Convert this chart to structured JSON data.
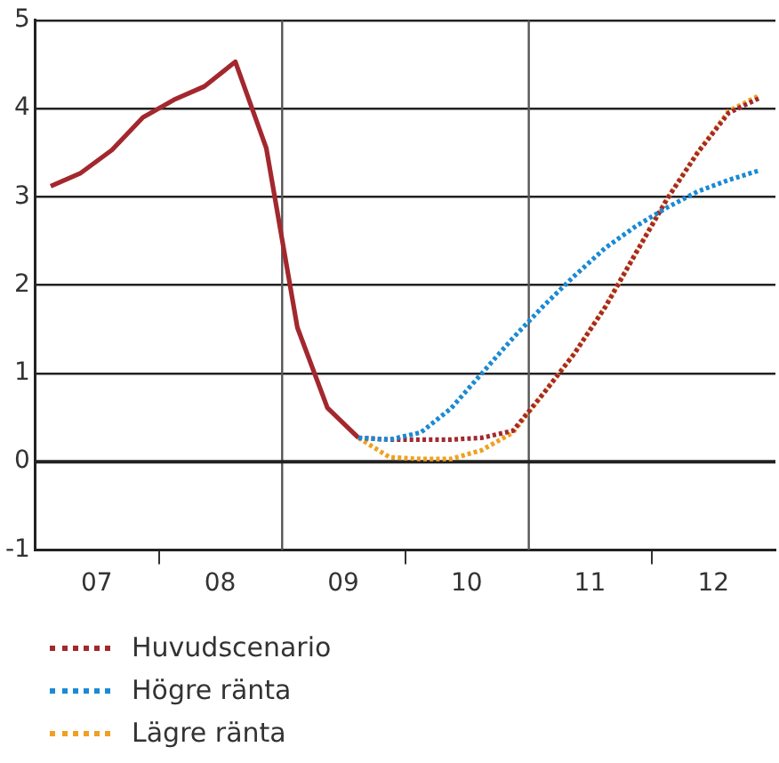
{
  "chart_data": {
    "type": "line",
    "x": [
      "2007-02-15",
      "2007-05-15",
      "2007-08-15",
      "2007-11-15",
      "2008-02-15",
      "2008-05-15",
      "2008-08-15",
      "2008-11-15",
      "2009-02-15",
      "2009-05-15",
      "2009-08-15"
    ],
    "series": [
      {
        "color": "#a3282e",
        "values": [
          3.12,
          3.27,
          3.53,
          3.9,
          4.1,
          4.25,
          4.53,
          3.55,
          1.52,
          0.61,
          0.27
        ],
        "line_style": "solid"
      },
      {
        "name": "Huvudscenario",
        "color": "#a3282e",
        "line_style": "dotted",
        "x": [
          "2009-08-15",
          "2009-11-15",
          "2010-02-15",
          "2010-05-15",
          "2010-08-15",
          "2010-11-15",
          "2011-02-15",
          "2011-05-15",
          "2011-08-15",
          "2011-11-15",
          "2012-02-15",
          "2012-05-15",
          "2012-08-15",
          "2012-11-15"
        ],
        "values": [
          0.27,
          0.25,
          0.25,
          0.25,
          0.27,
          0.35,
          0.78,
          1.22,
          1.75,
          2.37,
          2.98,
          3.5,
          3.95,
          4.12
        ]
      },
      {
        "name": "Högre ränta",
        "color": "#1a8ad4",
        "line_style": "dotted",
        "x": [
          "2009-08-15",
          "2009-11-15",
          "2010-02-15",
          "2010-05-15",
          "2010-08-15",
          "2010-11-15",
          "2011-02-15",
          "2011-05-15",
          "2011-08-15",
          "2011-11-15",
          "2012-02-15",
          "2012-05-15",
          "2012-08-15",
          "2012-11-15"
        ],
        "values": [
          0.27,
          0.25,
          0.33,
          0.6,
          1.0,
          1.4,
          1.77,
          2.1,
          2.42,
          2.67,
          2.88,
          3.06,
          3.19,
          3.3
        ]
      },
      {
        "name": "Lägre ränta",
        "color": "#f0a020",
        "line_style": "dotted",
        "x": [
          "2009-08-15",
          "2009-11-15",
          "2010-02-15",
          "2010-05-15",
          "2010-08-15",
          "2010-11-15",
          "2011-02-15",
          "2011-05-15",
          "2011-08-15",
          "2011-11-15",
          "2012-02-15",
          "2012-05-15",
          "2012-08-15",
          "2012-11-15"
        ],
        "values": [
          0.27,
          0.05,
          0.03,
          0.03,
          0.13,
          0.33,
          0.78,
          1.22,
          1.75,
          2.37,
          2.98,
          3.5,
          3.97,
          4.15
        ]
      }
    ],
    "xlim": [
      "2007-01-01",
      "2013-01-01"
    ],
    "xticks": [
      {
        "value": "2007-07-01",
        "label": "07"
      },
      {
        "value": "2008-01-01",
        "label": null
      },
      {
        "value": "2008-07-01",
        "label": "08"
      },
      {
        "value": "2009-07-01",
        "label": "09"
      },
      {
        "value": "2010-01-01",
        "label": null
      },
      {
        "value": "2010-07-01",
        "label": "10"
      },
      {
        "value": "2011-07-01",
        "label": "11"
      },
      {
        "value": "2012-01-01",
        "label": null
      },
      {
        "value": "2012-07-01",
        "label": "12"
      }
    ],
    "ylim": [
      -1,
      5
    ],
    "yticks": [
      -1,
      0,
      1,
      2,
      3,
      4,
      5
    ],
    "ref_lines": [
      {
        "axis": "x",
        "value": "2009-01-01",
        "color": "#555555"
      },
      {
        "axis": "x",
        "value": "2011-01-01",
        "color": "#555555"
      },
      {
        "axis": "y",
        "value": 0,
        "color": "#222222"
      }
    ],
    "grid": "y",
    "legend": "bottom",
    "marker": "none"
  }
}
